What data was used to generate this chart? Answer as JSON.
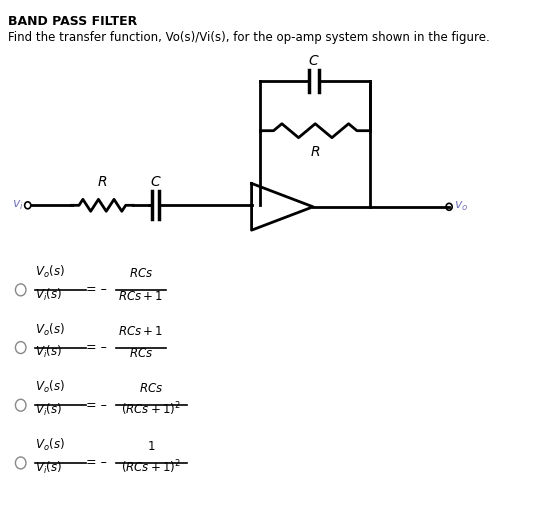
{
  "title_line1": "BAND PASS FILTER",
  "title_line2": "Find the transfer function, Vo(s)/Vi(s), for the op-amp system shown in the figure.",
  "bg_color": "#ffffff",
  "text_color": "#000000",
  "vi_color": "#6666aa",
  "vo_color": "#6666aa",
  "options": [
    {
      "lhs_num": "V_o(s)",
      "lhs_den": "V_i(s)",
      "rhs_num": "RCs",
      "rhs_den": "RCs + 1"
    },
    {
      "lhs_num": "V_o(s)",
      "lhs_den": "V_i(s)",
      "rhs_num": "RCs + 1",
      "rhs_den": "RCs"
    },
    {
      "lhs_num": "V_o(s)",
      "lhs_den": "V_i(s)",
      "rhs_num": "RCs",
      "rhs_den": "(RCs + 1)²"
    },
    {
      "lhs_num": "V_o(s)",
      "lhs_den": "V_i(s)",
      "rhs_num": "1",
      "rhs_den": "(RCs + 1)²"
    }
  ],
  "figsize": [
    5.47,
    5.26
  ],
  "dpi": 100,
  "lw": 2.0,
  "lw_thin": 1.2
}
